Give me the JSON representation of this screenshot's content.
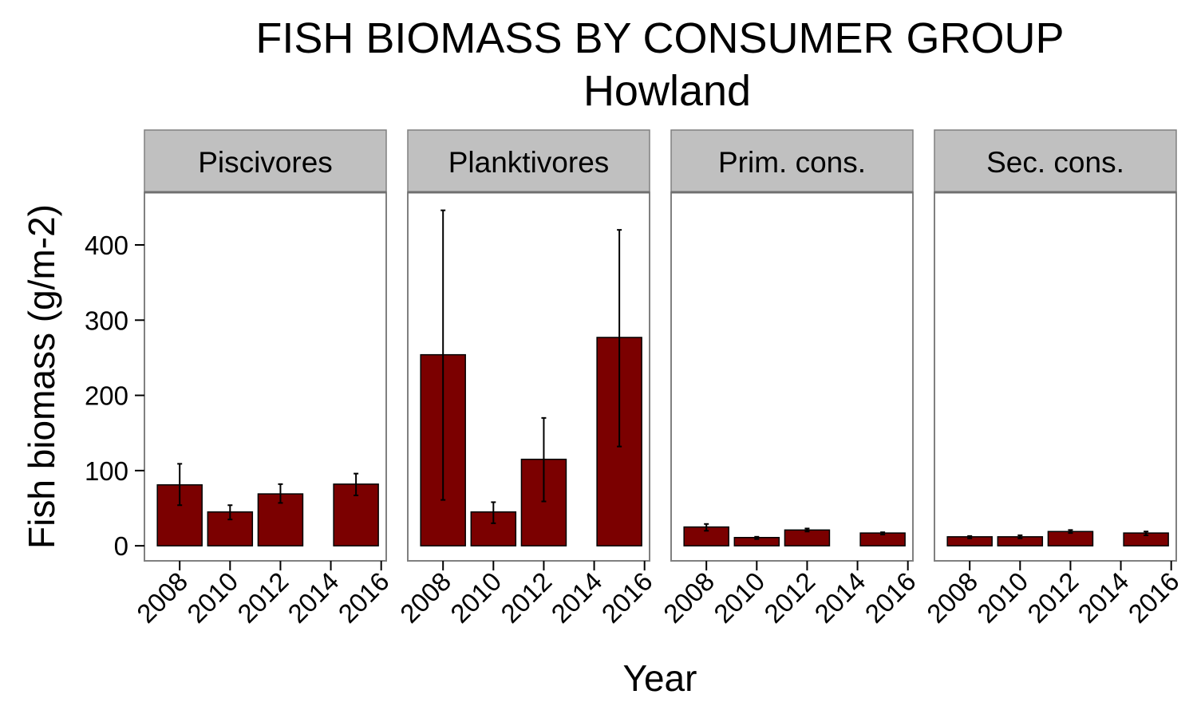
{
  "chart_data": {
    "type": "bar",
    "title": "FISH BIOMASS BY CONSUMER GROUP",
    "subtitle": "Howland",
    "xlabel": "Year",
    "ylabel": "Fish biomass (g/m-2)",
    "ylim": [
      -20,
      470
    ],
    "yticks": [
      0,
      100,
      200,
      300,
      400
    ],
    "xlim": [
      2006.6,
      2016.2
    ],
    "xticks": [
      "2008",
      "2010",
      "2012",
      "2014",
      "2016"
    ],
    "grid": false,
    "bar_color": "#7b0000",
    "strip_color": "#c0c0c0",
    "panels": [
      {
        "name": "Piscivores",
        "bars": [
          {
            "year": 2008,
            "value": 81,
            "err_low": 54,
            "err_high": 109
          },
          {
            "year": 2010,
            "value": 45,
            "err_low": 35,
            "err_high": 54
          },
          {
            "year": 2012,
            "value": 69,
            "err_low": 57,
            "err_high": 82
          },
          {
            "year": 2015,
            "value": 82,
            "err_low": 67,
            "err_high": 96
          }
        ]
      },
      {
        "name": "Planktivores",
        "bars": [
          {
            "year": 2008,
            "value": 254,
            "err_low": 61,
            "err_high": 446
          },
          {
            "year": 2010,
            "value": 45,
            "err_low": 30,
            "err_high": 58
          },
          {
            "year": 2012,
            "value": 115,
            "err_low": 59,
            "err_high": 170
          },
          {
            "year": 2015,
            "value": 277,
            "err_low": 132,
            "err_high": 420
          }
        ]
      },
      {
        "name": "Prim. cons.",
        "bars": [
          {
            "year": 2008,
            "value": 25,
            "err_low": 20,
            "err_high": 29
          },
          {
            "year": 2010,
            "value": 11,
            "err_low": 9,
            "err_high": 12
          },
          {
            "year": 2012,
            "value": 21,
            "err_low": 19,
            "err_high": 23
          },
          {
            "year": 2015,
            "value": 17,
            "err_low": 15,
            "err_high": 18
          }
        ]
      },
      {
        "name": "Sec. cons.",
        "bars": [
          {
            "year": 2008,
            "value": 12,
            "err_low": 10,
            "err_high": 13
          },
          {
            "year": 2010,
            "value": 12,
            "err_low": 10,
            "err_high": 14
          },
          {
            "year": 2012,
            "value": 19,
            "err_low": 17,
            "err_high": 21
          },
          {
            "year": 2015,
            "value": 17,
            "err_low": 14,
            "err_high": 19
          }
        ]
      }
    ]
  }
}
